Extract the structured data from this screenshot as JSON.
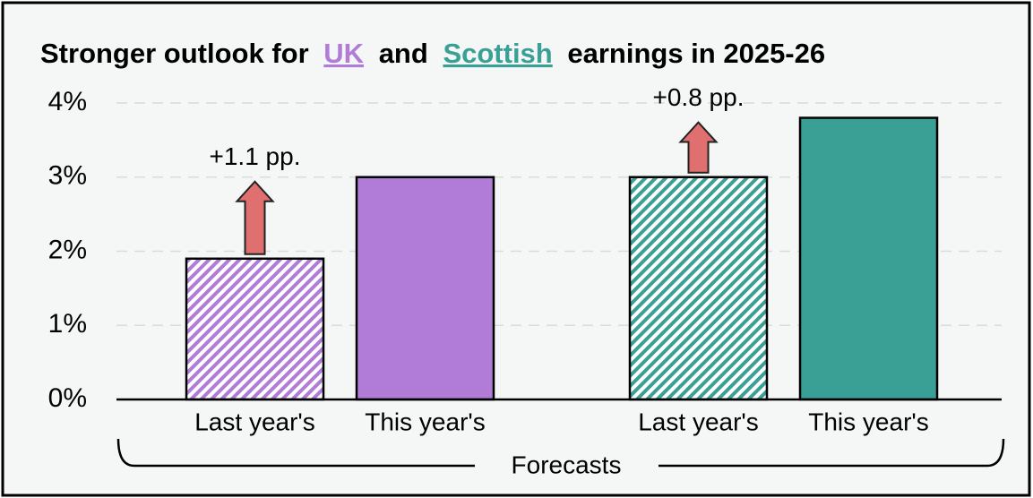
{
  "chart_data": {
    "type": "bar",
    "title_parts": [
      "Stronger outlook for",
      "and",
      "earnings in 2025-26"
    ],
    "categories": [
      "Last year's",
      "This year's"
    ],
    "series": [
      {
        "name": "UK",
        "color": "#b07cd8",
        "values": [
          1.9,
          3.0
        ],
        "annotation": "+1.1 pp."
      },
      {
        "name": "Scottish",
        "color": "#3aa096",
        "values": [
          3.0,
          3.8
        ],
        "annotation": "+0.8 pp."
      }
    ],
    "xlabel": "Forecasts",
    "ylim": [
      0,
      4.2
    ],
    "yticks": [
      {
        "value": 0,
        "label": "0%"
      },
      {
        "value": 1,
        "label": "1%"
      },
      {
        "value": 2,
        "label": "2%"
      },
      {
        "value": 3,
        "label": "3%"
      },
      {
        "value": 4,
        "label": "4%"
      }
    ],
    "grid": true
  }
}
